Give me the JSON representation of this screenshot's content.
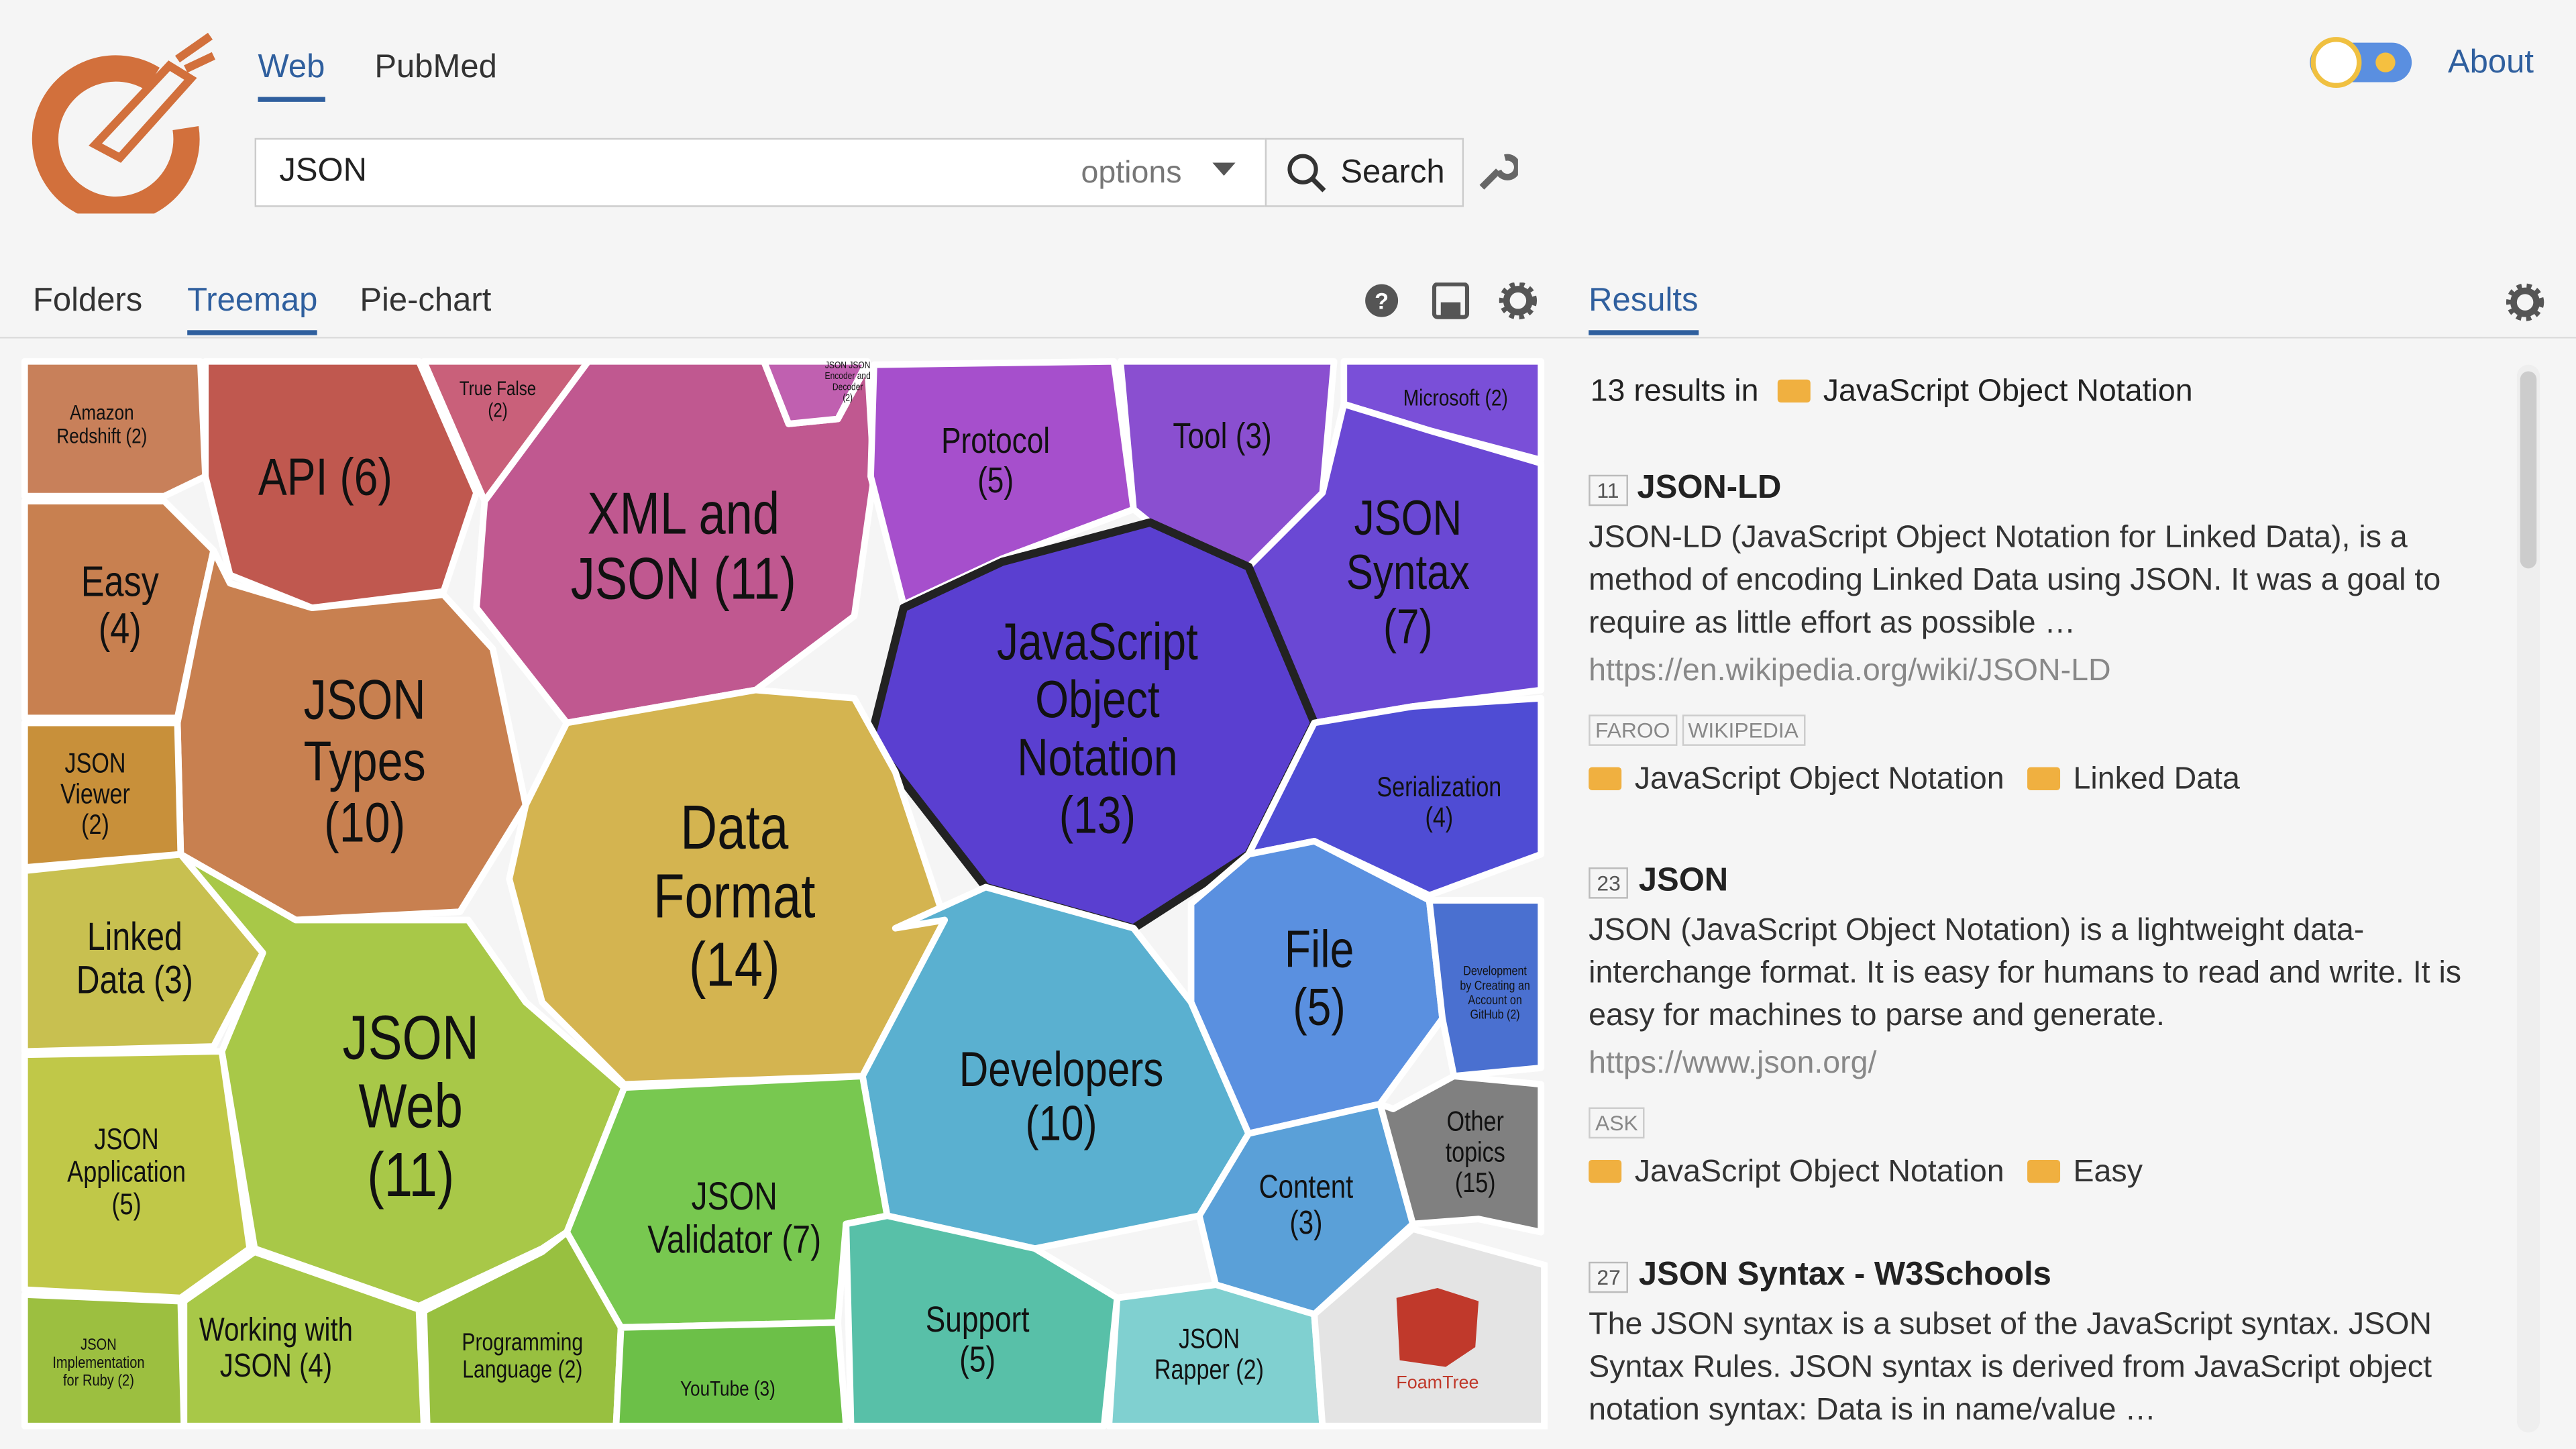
{
  "header": {
    "tabs": [
      "Web",
      "PubMed"
    ],
    "search_query": "JSON",
    "options": "options",
    "search_button": "Search",
    "about": "About"
  },
  "view_tabs": [
    "Folders",
    "Treemap",
    "Pie-chart"
  ],
  "results_tab": "Results",
  "treemap": {
    "cells": [
      {
        "lines": [
          "Amazon",
          "Redshift (2)"
        ]
      },
      {
        "lines": [
          "API (6)"
        ]
      },
      {
        "lines": [
          "True False",
          "(2)"
        ]
      },
      {
        "lines": [
          "XML and",
          "JSON (11)"
        ]
      },
      {
        "lines": [
          "JSON JSON",
          "Encoder and",
          "Decoder",
          "(2)"
        ]
      },
      {
        "lines": [
          "Protocol",
          "(5)"
        ]
      },
      {
        "lines": [
          "Tool (3)"
        ]
      },
      {
        "lines": [
          "Microsoft (2)"
        ]
      },
      {
        "lines": [
          "JSON",
          "Syntax",
          "(7)"
        ]
      },
      {
        "lines": [
          "JavaScript",
          "Object",
          "Notation",
          "(13)"
        ]
      },
      {
        "lines": [
          "Serialization",
          "(4)"
        ]
      },
      {
        "lines": [
          "Easy",
          "(4)"
        ]
      },
      {
        "lines": [
          "JSON",
          "Types",
          "(10)"
        ]
      },
      {
        "lines": [
          "JSON",
          "Viewer",
          "(2)"
        ]
      },
      {
        "lines": [
          "Data",
          "Format",
          "(14)"
        ]
      },
      {
        "lines": [
          "Linked",
          "Data (3)"
        ]
      },
      {
        "lines": [
          "JSON",
          "Web",
          "(11)"
        ]
      },
      {
        "lines": [
          "JSON",
          "Application",
          "(5)"
        ]
      },
      {
        "lines": [
          "Developers",
          "(10)"
        ]
      },
      {
        "lines": [
          "File",
          "(5)"
        ]
      },
      {
        "lines": [
          "Development",
          "by Creating an",
          "Account on",
          "GitHub (2)"
        ]
      },
      {
        "lines": [
          "JSON",
          "Validator (7)"
        ]
      },
      {
        "lines": [
          "Content",
          "(3)"
        ]
      },
      {
        "lines": [
          "Other",
          "topics",
          "(15)"
        ]
      },
      {
        "lines": [
          "JSON",
          "Implementation",
          "for Ruby (2)"
        ]
      },
      {
        "lines": [
          "Working with",
          "JSON (4)"
        ]
      },
      {
        "lines": [
          "Programming",
          "Language (2)"
        ]
      },
      {
        "lines": [
          "YouTube (3)"
        ]
      },
      {
        "lines": [
          "Support",
          "(5)"
        ]
      },
      {
        "lines": [
          "JSON",
          "Rapper (2)"
        ]
      }
    ],
    "brand": "FoamTree"
  },
  "results": {
    "summary": "13 results in",
    "folder": "JavaScript Object Notation",
    "items": [
      {
        "rank": "11",
        "title": "JSON-LD",
        "snippet": "JSON-LD (JavaScript Object Notation for Linked Data), is a method of encoding Linked Data using JSON. It was a goal to require as little effort as possible …",
        "url": "https://en.wikipedia.org/wiki/JSON-LD",
        "sources": [
          "FAROO",
          "WIKIPEDIA"
        ],
        "folders": [
          "JavaScript Object Notation",
          "Linked Data"
        ]
      },
      {
        "rank": "23",
        "title": "JSON",
        "snippet": "JSON (JavaScript Object Notation) is a lightweight data-interchange format. It is easy for humans to read and write. It is easy for machines to parse and generate.",
        "url": "https://www.json.org/",
        "sources": [
          "ASK"
        ],
        "folders": [
          "JavaScript Object Notation",
          "Easy"
        ]
      },
      {
        "rank": "27",
        "title": "JSON Syntax - W3Schools",
        "snippet": "The JSON syntax is a subset of the JavaScript syntax. JSON Syntax Rules. JSON syntax is derived from JavaScript object notation syntax: Data is in name/value …"
      }
    ]
  }
}
